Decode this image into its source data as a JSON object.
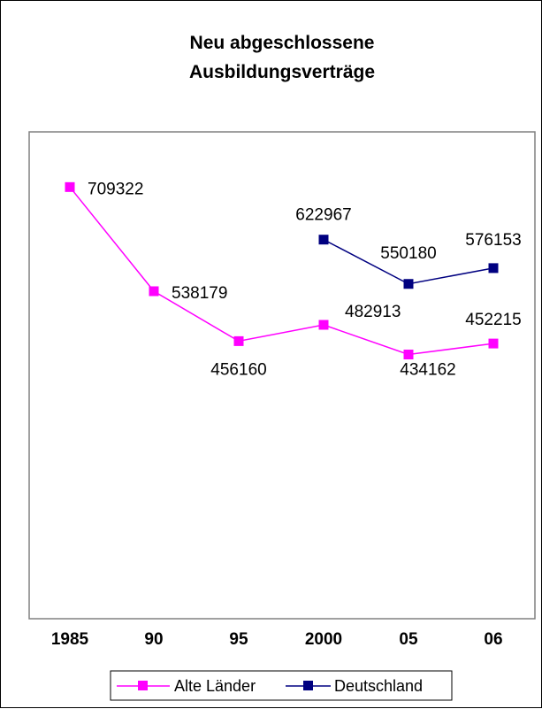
{
  "chart_data": {
    "type": "line",
    "title_lines": [
      "Neu abgeschlossene",
      "Ausbildungsverträge"
    ],
    "xlabel": "",
    "ylabel": "",
    "categories": [
      "1985",
      "90",
      "95",
      "2000",
      "05",
      "06"
    ],
    "ylim": [
      0,
      800000
    ],
    "grid": false,
    "legend_position": "bottom",
    "series": [
      {
        "name": "Alte Länder",
        "color": "#ff00ff",
        "marker": "square",
        "values": [
          709322,
          538179,
          456160,
          482913,
          434162,
          452215
        ]
      },
      {
        "name": "Deutschland",
        "color": "#000080",
        "marker": "square",
        "values": [
          null,
          null,
          null,
          622967,
          550180,
          576153
        ]
      }
    ]
  }
}
